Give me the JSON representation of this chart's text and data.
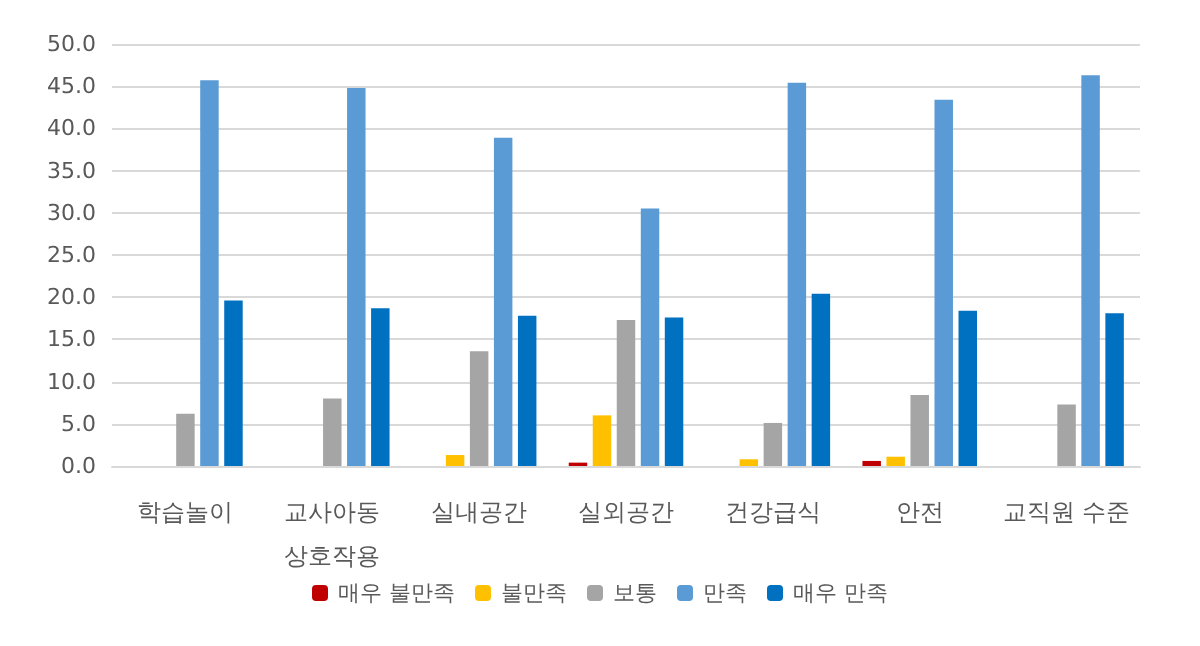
{
  "chart_data": {
    "type": "bar",
    "categories": [
      "학습놀이",
      "교사아동\n상호작용",
      "실내공간",
      "실외공간",
      "건강급식",
      "안전",
      "교직원 수준"
    ],
    "series": [
      {
        "name": "매우 불만족",
        "color": "#c00000",
        "values": [
          0,
          0,
          0,
          0.4,
          0,
          0.6,
          0
        ]
      },
      {
        "name": "불만족",
        "color": "#ffc000",
        "values": [
          0,
          0,
          1.3,
          6.0,
          0.8,
          1.1,
          0
        ]
      },
      {
        "name": "보통",
        "color": "#a5a5a5",
        "values": [
          6.2,
          8.0,
          13.6,
          17.3,
          5.1,
          8.4,
          7.3
        ]
      },
      {
        "name": "만족",
        "color": "#5b9bd5",
        "values": [
          45.7,
          44.8,
          38.9,
          30.5,
          45.4,
          43.4,
          46.3
        ]
      },
      {
        "name": "매우 만족",
        "color": "#0070c0",
        "values": [
          19.6,
          18.7,
          17.8,
          17.6,
          20.4,
          18.4,
          18.1
        ]
      }
    ],
    "ylim": [
      0,
      50
    ],
    "yticks": [
      {
        "value": 0,
        "label": "0.0"
      },
      {
        "value": 5,
        "label": "5.0"
      },
      {
        "value": 10,
        "label": "10.0"
      },
      {
        "value": 15,
        "label": "15.0"
      },
      {
        "value": 20,
        "label": "20.0"
      },
      {
        "value": 25,
        "label": "25.0"
      },
      {
        "value": 30,
        "label": "30.0"
      },
      {
        "value": 35,
        "label": "35.0"
      },
      {
        "value": 40,
        "label": "40.0"
      },
      {
        "value": 45,
        "label": "45.0"
      },
      {
        "value": 50,
        "label": "50.0"
      }
    ],
    "grid": "y",
    "legend": "bottom"
  }
}
